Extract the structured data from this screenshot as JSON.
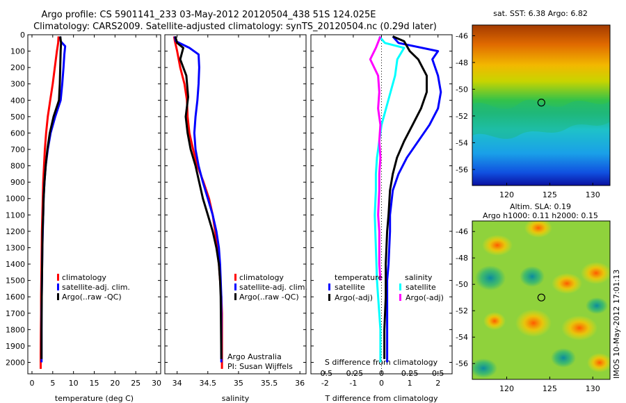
{
  "header": {
    "line1": "Argo profile: CS 5901141_233 03-May-2012 20120504_438 51S 124.025E",
    "line2": "Climatology: CARS2009. Satellite-adjusted climatology: synTS_20120504.nc (0.29d later)"
  },
  "side_text": "IMOS 10-May-2012 17:01:13",
  "colors": {
    "red": "#ff0000",
    "blue": "#0000ff",
    "black": "#000000",
    "cyan": "#00ffff",
    "magenta": "#ff00ff"
  },
  "chart_data": [
    {
      "id": "temperature",
      "type": "line",
      "xlabel": "temperature (deg C)",
      "xlim": [
        -1,
        31
      ],
      "xticks": [
        0,
        5,
        10,
        15,
        20,
        25,
        30
      ],
      "ylim": [
        0,
        2070
      ],
      "yticks": [
        0,
        100,
        200,
        300,
        400,
        500,
        600,
        700,
        800,
        900,
        1000,
        1100,
        1200,
        1300,
        1400,
        1500,
        1600,
        1700,
        1800,
        1900,
        2000
      ],
      "y_reversed": true,
      "legend": [
        "climatology",
        "satellite-adj. clim.",
        "Argo(..raw -QC)"
      ],
      "series": [
        {
          "name": "climatology",
          "color": "red",
          "x": [
            6.4,
            6.3,
            6.0,
            5.5,
            5.0,
            4.4,
            3.8,
            3.4,
            3.1,
            2.9,
            2.7,
            2.6,
            2.5,
            2.4,
            2.35,
            2.3,
            2.25,
            2.2,
            2.2,
            2.15,
            2.1,
            2.1
          ],
          "y": [
            10,
            50,
            100,
            200,
            300,
            400,
            500,
            600,
            700,
            800,
            900,
            1000,
            1100,
            1200,
            1300,
            1400,
            1500,
            1600,
            1700,
            1800,
            1950,
            2040
          ]
        },
        {
          "name": "satellite-adj. clim.",
          "color": "blue",
          "x": [
            6.8,
            6.9,
            8.0,
            7.8,
            7.6,
            7.3,
            6.9,
            5.6,
            4.5,
            3.8,
            3.3,
            3.0,
            2.8,
            2.7,
            2.6,
            2.5,
            2.45,
            2.4,
            2.35,
            2.3,
            2.3,
            2.3
          ],
          "y": [
            10,
            40,
            70,
            120,
            200,
            300,
            400,
            500,
            600,
            700,
            800,
            900,
            1000,
            1100,
            1200,
            1300,
            1400,
            1500,
            1600,
            1700,
            1800,
            2000
          ]
        },
        {
          "name": "Argo(..raw -QC)",
          "color": "black",
          "x": [
            6.8,
            7.0,
            6.9,
            6.8,
            6.7,
            6.5,
            5.2,
            4.3,
            3.7,
            3.3,
            3.0,
            2.8,
            2.7,
            2.55,
            2.5,
            2.45,
            2.4,
            2.35,
            2.3,
            2.3
          ],
          "y": [
            10,
            50,
            100,
            200,
            300,
            400,
            500,
            600,
            700,
            800,
            900,
            1000,
            1100,
            1200,
            1300,
            1400,
            1500,
            1600,
            1800,
            1980
          ]
        }
      ]
    },
    {
      "id": "salinity",
      "type": "line",
      "xlabel": "salinity",
      "xlim": [
        33.8,
        36.1
      ],
      "xticks": [
        34,
        34.5,
        35,
        35.5,
        36
      ],
      "ylim": [
        0,
        2070
      ],
      "y_reversed": true,
      "legend": [
        "climatology",
        "satellite-adj. clim.",
        "Argo(..raw -QC)"
      ],
      "annotation": [
        "Argo Australia",
        "PI: Susan Wijffels"
      ],
      "series": [
        {
          "name": "climatology",
          "color": "red",
          "x": [
            33.95,
            33.97,
            34.0,
            34.05,
            34.12,
            34.16,
            34.17,
            34.2,
            34.26,
            34.33,
            34.43,
            34.52,
            34.58,
            34.62,
            34.65,
            34.68,
            34.7,
            34.72,
            34.73,
            34.73,
            34.73
          ],
          "y": [
            10,
            50,
            100,
            200,
            300,
            400,
            500,
            600,
            700,
            800,
            900,
            1000,
            1100,
            1200,
            1300,
            1400,
            1500,
            1600,
            1700,
            1800,
            2040
          ]
        },
        {
          "name": "satellite-adj. clim.",
          "color": "blue",
          "x": [
            33.96,
            33.98,
            34.2,
            34.35,
            34.36,
            34.35,
            34.33,
            34.3,
            34.28,
            34.3,
            34.35,
            34.42,
            34.5,
            34.58,
            34.64,
            34.68,
            34.7,
            34.71,
            34.72,
            34.72
          ],
          "y": [
            10,
            40,
            80,
            120,
            200,
            300,
            400,
            500,
            600,
            700,
            800,
            900,
            1000,
            1100,
            1200,
            1300,
            1400,
            1500,
            1600,
            2000
          ]
        },
        {
          "name": "Argo(..raw -QC)",
          "color": "black",
          "x": [
            33.97,
            34.0,
            34.1,
            34.05,
            34.15,
            34.18,
            34.14,
            34.17,
            34.22,
            34.3,
            34.36,
            34.42,
            34.5,
            34.58,
            34.64,
            34.68,
            34.7,
            34.71,
            34.72
          ],
          "y": [
            10,
            50,
            80,
            150,
            250,
            380,
            500,
            600,
            700,
            800,
            900,
            1000,
            1100,
            1200,
            1300,
            1400,
            1500,
            1600,
            1980
          ]
        }
      ]
    },
    {
      "id": "differences",
      "type": "line",
      "xlabel": "T difference from climatology",
      "xlabel_top": "S difference from climatology",
      "xlim": [
        -2.5,
        2.5
      ],
      "xticks": [
        -2,
        -1,
        0,
        1,
        2
      ],
      "xlim_top": [
        -0.625,
        0.625
      ],
      "xticks_top": [
        "-0.5",
        "-0.25",
        "0",
        "0.25",
        "0.5"
      ],
      "ylim": [
        0,
        2070
      ],
      "y_reversed": true,
      "legend_groups": [
        {
          "title": "temperature",
          "items": [
            "satellite",
            "Argo(-adj)"
          ]
        },
        {
          "title": "salinity",
          "items": [
            "satellite",
            "Argo(-adj)"
          ]
        }
      ],
      "series": [
        {
          "name": "temperature satellite",
          "color": "blue",
          "axis": "T",
          "x": [
            0.4,
            0.6,
            2.0,
            1.8,
            2.0,
            2.1,
            2.0,
            1.7,
            1.3,
            0.9,
            0.6,
            0.4,
            0.3,
            0.3,
            0.25,
            0.2,
            0.2,
            0.2,
            0.2,
            0.2
          ],
          "y": [
            10,
            50,
            100,
            150,
            250,
            350,
            450,
            550,
            650,
            750,
            850,
            950,
            1100,
            1200,
            1400,
            1500,
            1600,
            1800,
            1900,
            2000
          ]
        },
        {
          "name": "temperature Argo(-adj)",
          "color": "black",
          "axis": "T",
          "x": [
            0.4,
            0.8,
            1.0,
            1.3,
            1.6,
            1.6,
            1.4,
            1.1,
            0.8,
            0.55,
            0.4,
            0.3,
            0.25,
            0.2,
            0.15,
            0.15,
            0.1,
            0.1,
            0.1
          ],
          "y": [
            10,
            40,
            100,
            150,
            250,
            350,
            450,
            550,
            650,
            750,
            850,
            950,
            1100,
            1200,
            1400,
            1600,
            1800,
            1900,
            1980
          ]
        },
        {
          "name": "salinity satellite",
          "color": "cyan",
          "axis": "S",
          "x": [
            -0.02,
            0.03,
            0.2,
            0.14,
            0.12,
            0.08,
            0.04,
            0.0,
            -0.02,
            -0.04,
            -0.05,
            -0.05,
            -0.06,
            -0.05,
            -0.04,
            -0.03,
            -0.02,
            -0.01,
            -0.01,
            -0.01
          ],
          "y": [
            10,
            50,
            80,
            150,
            250,
            350,
            450,
            550,
            650,
            750,
            850,
            950,
            1100,
            1300,
            1500,
            1600,
            1700,
            1800,
            1900,
            2000
          ]
        },
        {
          "name": "salinity Argo(-adj)",
          "color": "magenta",
          "axis": "S",
          "x": [
            -0.01,
            -0.05,
            -0.1,
            -0.03,
            -0.02,
            -0.03,
            -0.01,
            -0.02,
            -0.01,
            -0.02,
            -0.02,
            -0.03,
            -0.02,
            -0.02,
            -0.02,
            -0.01
          ],
          "y": [
            10,
            80,
            150,
            250,
            350,
            450,
            550,
            650,
            750,
            850,
            950,
            1100,
            1200,
            1300,
            1400,
            1500
          ]
        }
      ]
    },
    {
      "id": "sst_map",
      "type": "heatmap",
      "title": "sat. SST: 6.38 Argo: 6.82",
      "xlim": [
        116,
        132
      ],
      "ylim": [
        -57.2,
        -45.2
      ],
      "xticks": [
        120,
        125,
        130
      ],
      "yticks": [
        -46,
        -48,
        -50,
        -52,
        -54,
        -56
      ],
      "marker": {
        "lon": 124.025,
        "lat": -51
      }
    },
    {
      "id": "sla_map",
      "type": "heatmap",
      "title": [
        "Altim. SLA: 0.19",
        "Argo h1000: 0.11 h2000: 0.15"
      ],
      "xlim": [
        116,
        132
      ],
      "ylim": [
        -57.2,
        -45.2
      ],
      "xticks": [
        120,
        125,
        130
      ],
      "yticks": [
        -46,
        -48,
        -50,
        -52,
        -54,
        -56
      ],
      "marker": {
        "lon": 124.025,
        "lat": -51
      }
    }
  ]
}
